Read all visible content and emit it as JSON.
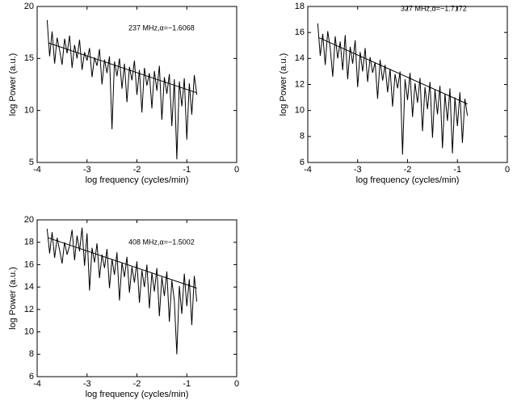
{
  "chart_data": [
    {
      "type": "line",
      "xlabel": "log frequency (cycles/min)",
      "ylabel": "log Power (a.u.)",
      "annotation": "237 MHz,α=−1.6068",
      "xlim": [
        -4,
        0
      ],
      "xticks": [
        -4,
        -3,
        -2,
        -1,
        0
      ],
      "ylim": [
        5,
        20
      ],
      "yticks": [
        5,
        10,
        15,
        20
      ],
      "series": [
        {
          "color": "#000000",
          "x": [
            -3.8,
            -3.75,
            -3.7,
            -3.65,
            -3.6,
            -3.55,
            -3.5,
            -3.45,
            -3.4,
            -3.35,
            -3.3,
            -3.25,
            -3.2,
            -3.15,
            -3.1,
            -3.05,
            -3.0,
            -2.95,
            -2.9,
            -2.85,
            -2.8,
            -2.75,
            -2.7,
            -2.65,
            -2.6,
            -2.55,
            -2.5,
            -2.45,
            -2.4,
            -2.35,
            -2.3,
            -2.25,
            -2.2,
            -2.15,
            -2.1,
            -2.05,
            -2.0,
            -1.95,
            -1.9,
            -1.85,
            -1.8,
            -1.75,
            -1.7,
            -1.65,
            -1.6,
            -1.55,
            -1.5,
            -1.45,
            -1.4,
            -1.35,
            -1.3,
            -1.25,
            -1.2,
            -1.15,
            -1.1,
            -1.05,
            -1.0,
            -0.95,
            -0.9,
            -0.85,
            -0.8
          ],
          "values": [
            18.7,
            15.2,
            17.6,
            14.5,
            17.0,
            15.8,
            14.4,
            16.9,
            15.5,
            17.2,
            14.1,
            16.3,
            15.0,
            16.8,
            13.9,
            15.6,
            14.8,
            16.0,
            13.2,
            15.1,
            14.3,
            15.9,
            12.5,
            14.9,
            13.6,
            15.2,
            8.2,
            14.7,
            13.3,
            15.0,
            12.1,
            14.5,
            10.8,
            14.2,
            12.9,
            14.8,
            11.5,
            13.9,
            9.8,
            14.1,
            12.4,
            13.6,
            10.2,
            13.8,
            11.9,
            14.3,
            9.1,
            13.2,
            11.6,
            13.5,
            8.5,
            13.0,
            5.3,
            12.8,
            10.4,
            13.1,
            7.2,
            12.6,
            9.6,
            13.4,
            11.5
          ]
        },
        {
          "color": "#000000",
          "x": [
            -3.78,
            -0.8
          ],
          "values": [
            16.5,
            11.7
          ]
        }
      ]
    },
    {
      "type": "line",
      "xlabel": "log frequency (cycles/min)",
      "ylabel": "log Power (a.u.)",
      "annotation": "327 MHz,α=−1.7172",
      "xlim": [
        -4,
        0
      ],
      "xticks": [
        -4,
        -3,
        -2,
        -1,
        0
      ],
      "ylim": [
        6,
        18
      ],
      "yticks": [
        6,
        8,
        10,
        12,
        14,
        16,
        18
      ],
      "series": [
        {
          "color": "#000000",
          "x": [
            -3.8,
            -3.75,
            -3.7,
            -3.65,
            -3.6,
            -3.55,
            -3.5,
            -3.45,
            -3.4,
            -3.35,
            -3.3,
            -3.25,
            -3.2,
            -3.15,
            -3.1,
            -3.05,
            -3.0,
            -2.95,
            -2.9,
            -2.85,
            -2.8,
            -2.75,
            -2.7,
            -2.65,
            -2.6,
            -2.55,
            -2.5,
            -2.45,
            -2.4,
            -2.35,
            -2.3,
            -2.25,
            -2.2,
            -2.15,
            -2.1,
            -2.05,
            -2.0,
            -1.95,
            -1.9,
            -1.85,
            -1.8,
            -1.75,
            -1.7,
            -1.65,
            -1.6,
            -1.55,
            -1.5,
            -1.45,
            -1.4,
            -1.35,
            -1.3,
            -1.25,
            -1.2,
            -1.15,
            -1.1,
            -1.05,
            -1.0,
            -0.95,
            -0.9,
            -0.85,
            -0.8
          ],
          "values": [
            16.7,
            14.2,
            15.9,
            13.5,
            16.1,
            14.8,
            12.6,
            15.7,
            14.0,
            15.3,
            13.1,
            15.8,
            12.4,
            14.9,
            13.6,
            15.4,
            11.8,
            14.5,
            13.0,
            14.8,
            12.2,
            14.1,
            12.9,
            13.7,
            10.9,
            13.9,
            12.3,
            13.5,
            11.4,
            13.2,
            10.3,
            12.8,
            11.7,
            13.0,
            6.6,
            12.4,
            10.8,
            12.9,
            9.5,
            12.1,
            10.6,
            12.5,
            8.4,
            11.8,
            10.1,
            12.2,
            7.9,
            11.6,
            9.7,
            11.9,
            7.1,
            11.3,
            9.2,
            11.7,
            6.7,
            11.0,
            8.8,
            11.4,
            7.5,
            10.9,
            9.6
          ]
        },
        {
          "color": "#000000",
          "x": [
            -3.78,
            -0.8
          ],
          "values": [
            15.6,
            10.5
          ]
        }
      ]
    },
    {
      "type": "line",
      "xlabel": "log frequency (cycles/min)",
      "ylabel": "log Power (a.u.)",
      "annotation": "408 MHz,α=−1.5002",
      "xlim": [
        -4,
        0
      ],
      "xticks": [
        -4,
        -3,
        -2,
        -1,
        0
      ],
      "ylim": [
        6,
        20
      ],
      "yticks": [
        6,
        8,
        10,
        12,
        14,
        16,
        18,
        20
      ],
      "series": [
        {
          "color": "#000000",
          "x": [
            -3.8,
            -3.75,
            -3.7,
            -3.65,
            -3.6,
            -3.55,
            -3.5,
            -3.45,
            -3.4,
            -3.35,
            -3.3,
            -3.25,
            -3.2,
            -3.15,
            -3.1,
            -3.05,
            -3.0,
            -2.95,
            -2.9,
            -2.85,
            -2.8,
            -2.75,
            -2.7,
            -2.65,
            -2.6,
            -2.55,
            -2.5,
            -2.45,
            -2.4,
            -2.35,
            -2.3,
            -2.25,
            -2.2,
            -2.15,
            -2.1,
            -2.05,
            -2.0,
            -1.95,
            -1.9,
            -1.85,
            -1.8,
            -1.75,
            -1.7,
            -1.65,
            -1.6,
            -1.55,
            -1.5,
            -1.45,
            -1.4,
            -1.35,
            -1.3,
            -1.25,
            -1.2,
            -1.15,
            -1.1,
            -1.05,
            -1.0,
            -0.95,
            -0.9,
            -0.85,
            -0.8
          ],
          "values": [
            19.2,
            17.0,
            18.9,
            16.6,
            18.4,
            17.3,
            16.1,
            18.0,
            16.9,
            17.7,
            19.1,
            16.4,
            18.6,
            17.2,
            19.3,
            15.9,
            18.8,
            13.7,
            17.5,
            16.2,
            17.9,
            14.8,
            16.9,
            15.7,
            17.4,
            13.9,
            16.5,
            15.1,
            17.1,
            12.8,
            16.2,
            14.9,
            16.7,
            13.5,
            15.8,
            14.4,
            16.3,
            12.6,
            15.5,
            14.0,
            16.0,
            12.1,
            15.3,
            13.6,
            15.7,
            11.4,
            14.9,
            13.2,
            15.4,
            10.9,
            14.6,
            12.8,
            8.0,
            14.1,
            11.6,
            15.2,
            12.3,
            14.7,
            10.6,
            15.0,
            12.7
          ]
        },
        {
          "color": "#000000",
          "x": [
            -3.78,
            -0.8
          ],
          "values": [
            18.4,
            13.9
          ]
        }
      ]
    }
  ]
}
